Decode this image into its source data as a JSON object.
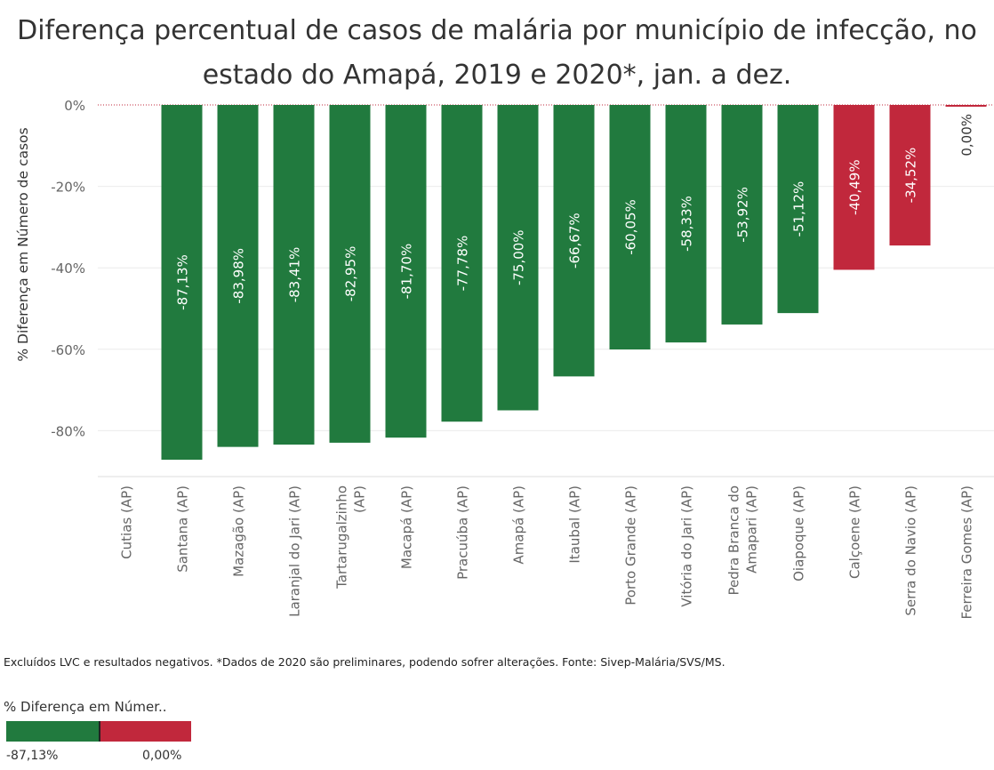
{
  "title_line1": "Diferença percentual de casos de malária por município de infecção, no",
  "title_line2": "estado do Amapá, 2019 e 2020*, jan. a dez.",
  "footnote": "Excluídos LVC e resultados negativos. *Dados de 2020 são preliminares, podendo sofrer alterações. Fonte: Sivep-Malária/SVS/MS.",
  "legend": {
    "title": "% Diferença em Númer..",
    "min_label": "-87,13%",
    "max_label": "0,00%",
    "color_low": "#217a3e",
    "color_high": "#c1283c"
  },
  "chart_data": {
    "type": "bar",
    "ylabel": "% Diferença em Número de casos",
    "ylim": [
      -95,
      0
    ],
    "yticks": [
      0,
      -20,
      -40,
      -60,
      -80
    ],
    "ytick_labels": [
      "0%",
      "-20%",
      "-40%",
      "-60%",
      "-80%"
    ],
    "grid": true,
    "categories": [
      [
        "Cutias (AP)"
      ],
      [
        "Santana (AP)"
      ],
      [
        "Mazagão (AP)"
      ],
      [
        "Laranjal do Jari (AP)"
      ],
      [
        "Tartarugalzinho",
        "(AP)"
      ],
      [
        "Macapá (AP)"
      ],
      [
        "Pracuúba (AP)"
      ],
      [
        "Amapá (AP)"
      ],
      [
        "Itaubal (AP)"
      ],
      [
        "Porto Grande (AP)"
      ],
      [
        "Vitória do Jari (AP)"
      ],
      [
        "Pedra Branca do",
        "Amapari (AP)"
      ],
      [
        "Oiapoque (AP)"
      ],
      [
        "Calçoene (AP)"
      ],
      [
        "Serra do Navio (AP)"
      ],
      [
        "Ferreira Gomes (AP)"
      ]
    ],
    "values": [
      null,
      -87.13,
      -83.98,
      -83.41,
      -82.95,
      -81.7,
      -77.78,
      -75.0,
      -66.67,
      -60.05,
      -58.33,
      -53.92,
      -51.12,
      -40.49,
      -34.52,
      0.0
    ],
    "labels": [
      "",
      "-87,13%",
      "-83,98%",
      "-83,41%",
      "-82,95%",
      "-81,70%",
      "-77,78%",
      "-75,00%",
      "-66,67%",
      "-60,05%",
      "-58,33%",
      "-53,92%",
      "-51,12%",
      "-40,49%",
      "-34,52%",
      "0,00%"
    ],
    "colors": [
      "",
      "#217a3e",
      "#217a3e",
      "#217a3e",
      "#217a3e",
      "#217a3e",
      "#217a3e",
      "#217a3e",
      "#217a3e",
      "#217a3e",
      "#217a3e",
      "#217a3e",
      "#217a3e",
      "#c1283c",
      "#c1283c",
      "#c1283c"
    ]
  }
}
